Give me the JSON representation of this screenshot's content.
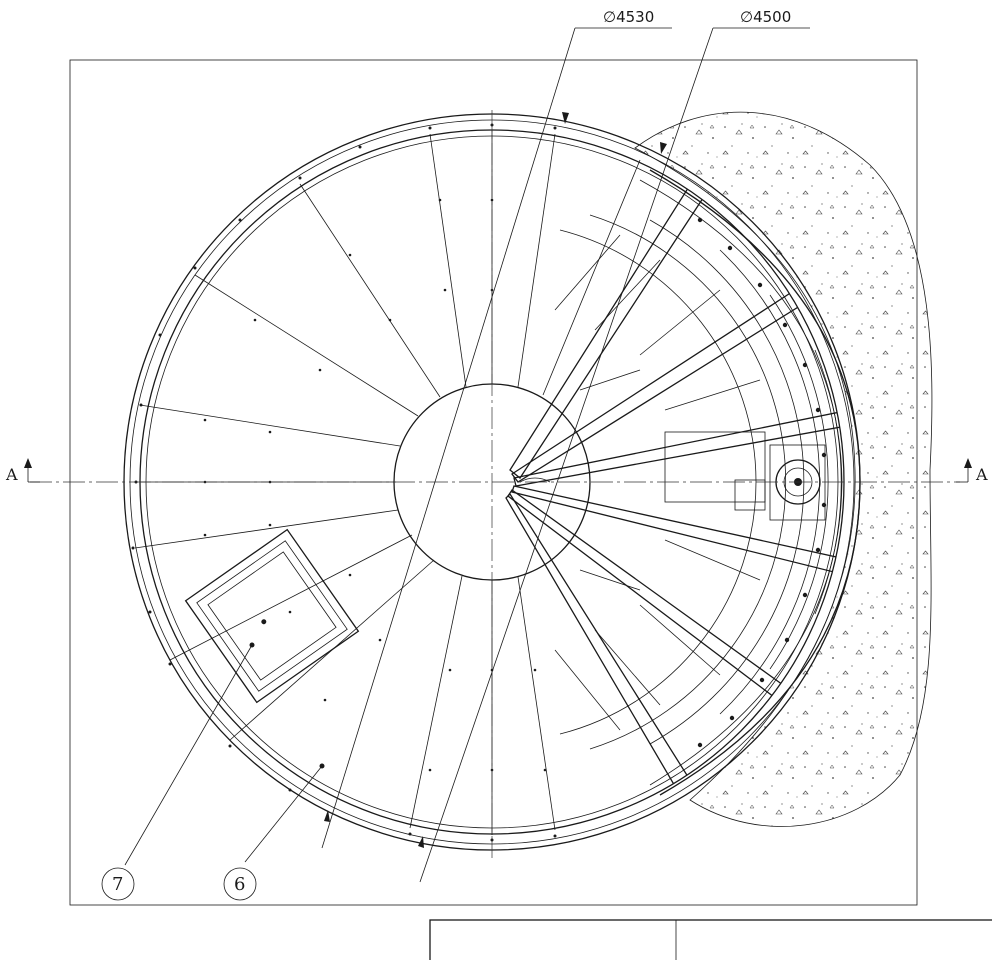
{
  "dimensions": {
    "outer": "∅4530",
    "inner": "∅4500"
  },
  "section_marks": {
    "left": "A",
    "right": "A"
  },
  "balloons": {
    "item_7": "7",
    "item_6": "6"
  },
  "title_block": {
    "cells": [
      "",
      ""
    ]
  }
}
